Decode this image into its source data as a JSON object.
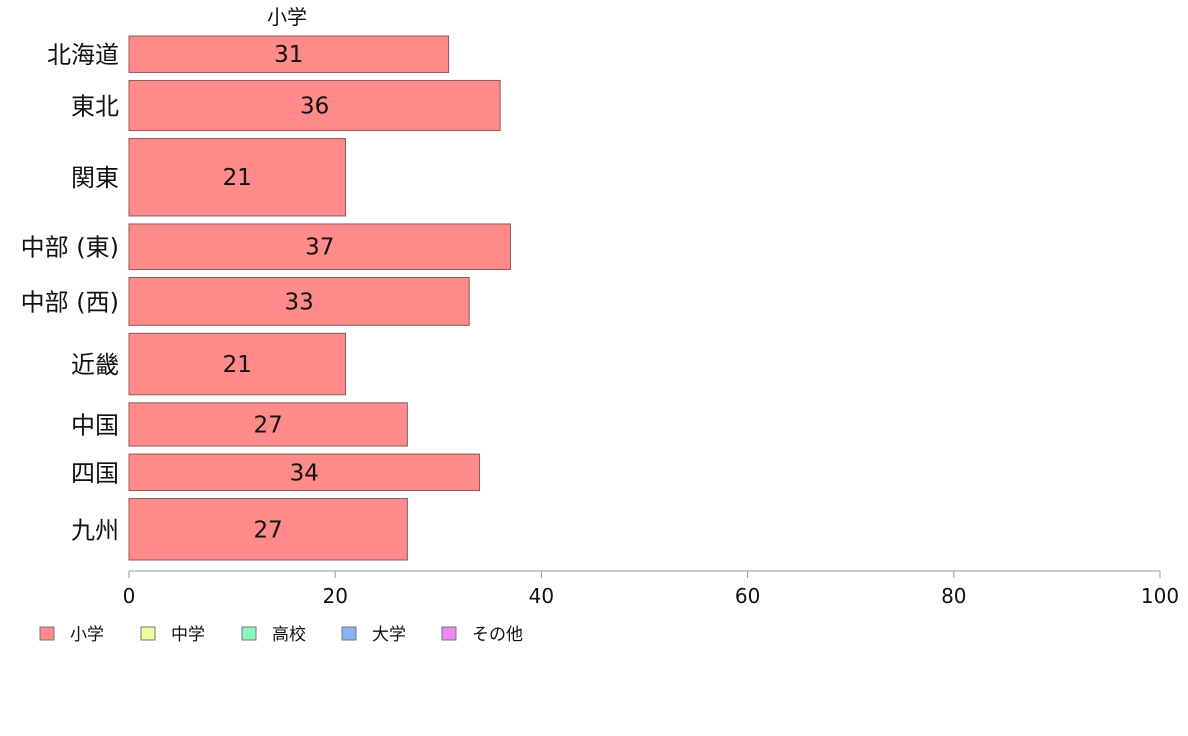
{
  "chart_data": {
    "type": "bar",
    "orientation": "horizontal",
    "stacked": true,
    "title": "小学",
    "categories": [
      "北海道",
      "東北",
      "関東",
      "中部 (東)",
      "中部 (西)",
      "近畿",
      "中国",
      "四国",
      "九州"
    ],
    "bar_thickness_relative": [
      0.8,
      1.1,
      1.7,
      1.0,
      1.05,
      1.35,
      0.95,
      0.8,
      1.35
    ],
    "series": [
      {
        "name": "小学",
        "color": "#ff8a8a",
        "values": [
          31,
          36,
          21,
          37,
          33,
          21,
          27,
          34,
          27
        ]
      },
      {
        "name": "中学",
        "color": "#eeff99",
        "values": [
          0,
          0,
          0,
          0,
          0,
          0,
          0,
          0,
          0
        ]
      },
      {
        "name": "高校",
        "color": "#88f5bb",
        "values": [
          0,
          0,
          0,
          0,
          0,
          0,
          0,
          0,
          0
        ]
      },
      {
        "name": "大学",
        "color": "#88b4f5",
        "values": [
          0,
          0,
          0,
          0,
          0,
          0,
          0,
          0,
          0
        ]
      },
      {
        "name": "その他",
        "color": "#ee88f5",
        "values": [
          0,
          0,
          0,
          0,
          0,
          0,
          0,
          0,
          0
        ]
      }
    ],
    "xlim": [
      0,
      100
    ],
    "xticks": [
      0,
      20,
      40,
      60,
      80,
      100
    ],
    "grid": false,
    "legend_position": "bottom-left"
  }
}
